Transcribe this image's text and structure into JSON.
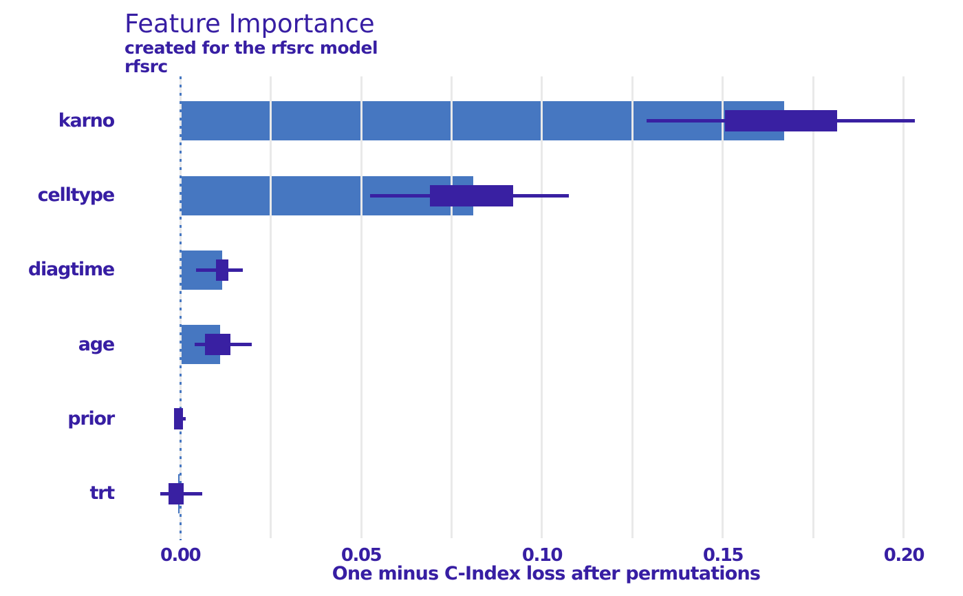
{
  "chart_data": {
    "type": "bar",
    "subtype": "feature-importance-with-boxplots",
    "orientation": "horizontal",
    "title": "Feature Importance",
    "subtitle": "created for the rfsrc model",
    "facet_label": "rfsrc",
    "xlabel": "One minus C-Index loss after permutations",
    "categories": [
      "karno",
      "celltype",
      "diagtime",
      "age",
      "prior",
      "trt"
    ],
    "bar_values": [
      0.167,
      0.081,
      0.0116,
      0.011,
      0.0002,
      -0.0005
    ],
    "boxplots": [
      {
        "whisker_low": 0.129,
        "q1": 0.1505,
        "q3": 0.1815,
        "whisker_high": 0.203
      },
      {
        "whisker_low": 0.0525,
        "q1": 0.069,
        "q3": 0.092,
        "whisker_high": 0.1075
      },
      {
        "whisker_low": 0.0044,
        "q1": 0.0099,
        "q3": 0.0133,
        "whisker_high": 0.0173
      },
      {
        "whisker_low": 0.004,
        "q1": 0.0068,
        "q3": 0.0139,
        "whisker_high": 0.0198
      },
      {
        "whisker_low": -0.0018,
        "q1": -0.0017,
        "q3": 0.0008,
        "whisker_high": 0.0015
      },
      {
        "whisker_low": -0.0055,
        "q1": -0.0032,
        "q3": 0.001,
        "whisker_high": 0.0061
      }
    ],
    "x_ticks": [
      {
        "value": 0.0,
        "label": "0.00"
      },
      {
        "value": 0.05,
        "label": "0.05"
      },
      {
        "value": 0.1,
        "label": "0.10"
      },
      {
        "value": 0.15,
        "label": "0.15"
      },
      {
        "value": 0.2,
        "label": "0.20"
      }
    ],
    "xlim": [
      -0.0137,
      0.216
    ],
    "grid_step": 0.025,
    "grid_max": 0.2,
    "zero_line": 0.0,
    "grid": true,
    "legend": false,
    "colors": {
      "bar": "#4677c1",
      "box": "#3920a2",
      "text": "#371ea3",
      "grid": "#e9e9e9",
      "zero_dash": "#4677c1"
    }
  }
}
